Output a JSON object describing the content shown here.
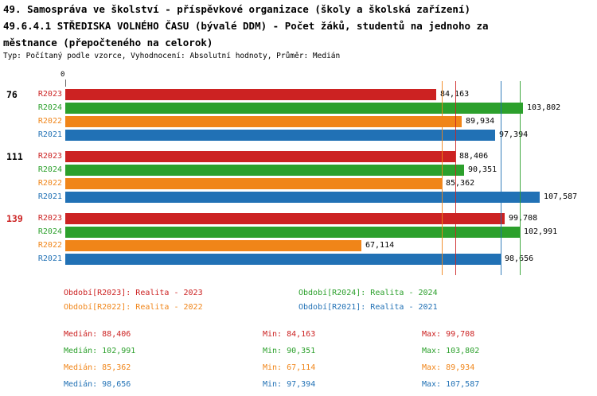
{
  "header": {
    "title_line1": "49. Samospráva ve školství - příspěvkové organizace (školy a školská zařízení)",
    "title_line2": "49.6.4.1 STŘEDISKA VOLNÉHO ČASU (bývalé DDM) - Počet žáků, studentů na jednoho za",
    "title_line3": "městnance (přepočteného na celorok)",
    "subtitle": "Typ: Počítaný podle vzorce, Vyhodnocení: Absolutní hodnoty, Průměr: Medián"
  },
  "colors": {
    "R2023": "#cc2222",
    "R2024": "#2ca02c",
    "R2022": "#f08519",
    "R2021": "#2171b5"
  },
  "chart_data": {
    "type": "bar",
    "orientation": "horizontal",
    "axis_zero_label": "0",
    "xlim": [
      0,
      107.587
    ],
    "grid": "median-lines-per-series",
    "legend_position": "bottom",
    "series_order": [
      "R2023",
      "R2024",
      "R2022",
      "R2021"
    ],
    "groups": [
      {
        "label": "76",
        "label_color": "#000000",
        "bars": [
          {
            "series": "R2023",
            "value": 84.163,
            "value_label": "84,163"
          },
          {
            "series": "R2024",
            "value": 103.802,
            "value_label": "103,802"
          },
          {
            "series": "R2022",
            "value": 89.934,
            "value_label": "89,934"
          },
          {
            "series": "R2021",
            "value": 97.394,
            "value_label": "97,394"
          }
        ]
      },
      {
        "label": "111",
        "label_color": "#000000",
        "bars": [
          {
            "series": "R2023",
            "value": 88.406,
            "value_label": "88,406"
          },
          {
            "series": "R2024",
            "value": 90.351,
            "value_label": "90,351"
          },
          {
            "series": "R2022",
            "value": 85.362,
            "value_label": "85,362"
          },
          {
            "series": "R2021",
            "value": 107.587,
            "value_label": "107,587"
          }
        ]
      },
      {
        "label": "139",
        "label_color": "#cc2222",
        "bars": [
          {
            "series": "R2023",
            "value": 99.708,
            "value_label": "99,708"
          },
          {
            "series": "R2024",
            "value": 102.991,
            "value_label": "102,991"
          },
          {
            "series": "R2022",
            "value": 67.114,
            "value_label": "67,114"
          },
          {
            "series": "R2021",
            "value": 98.656,
            "value_label": "98,656"
          }
        ]
      }
    ],
    "median_lines": [
      {
        "series": "R2023",
        "value": 88.406
      },
      {
        "series": "R2024",
        "value": 102.991
      },
      {
        "series": "R2022",
        "value": 85.362
      },
      {
        "series": "R2021",
        "value": 98.656
      }
    ]
  },
  "legend": [
    {
      "series": "R2023",
      "text": "Období[R2023]: Realita - 2023",
      "col": 0,
      "row": 0
    },
    {
      "series": "R2024",
      "text": "Období[R2024]: Realita - 2024",
      "col": 1,
      "row": 0
    },
    {
      "series": "R2022",
      "text": "Období[R2022]: Realita - 2022",
      "col": 0,
      "row": 1
    },
    {
      "series": "R2021",
      "text": "Období[R2021]: Realita - 2021",
      "col": 1,
      "row": 1
    }
  ],
  "stats": {
    "median_label": "Medián:",
    "min_label": "Min:",
    "max_label": "Max:",
    "rows": [
      {
        "series": "R2023",
        "median": "88,406",
        "min": "84,163",
        "max": "99,708"
      },
      {
        "series": "R2024",
        "median": "102,991",
        "min": "90,351",
        "max": "103,802"
      },
      {
        "series": "R2022",
        "median": "85,362",
        "min": "67,114",
        "max": "89,934"
      },
      {
        "series": "R2021",
        "median": "98,656",
        "min": "97,394",
        "max": "107,587"
      }
    ]
  }
}
